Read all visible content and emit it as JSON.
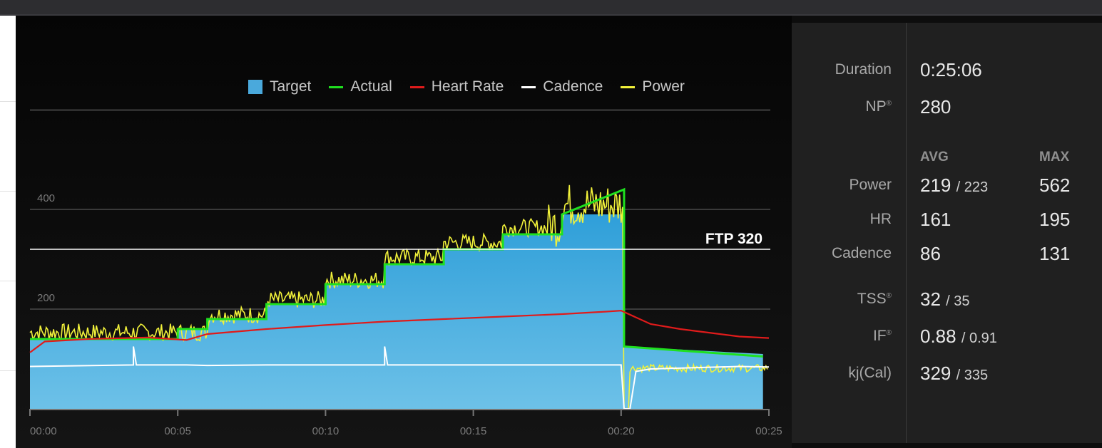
{
  "legend": [
    {
      "label": "Target",
      "color": "#4aa9dc",
      "kind": "box"
    },
    {
      "label": "Actual",
      "color": "#1fe01f",
      "kind": "line"
    },
    {
      "label": "Heart Rate",
      "color": "#e01b1b",
      "kind": "line"
    },
    {
      "label": "Cadence",
      "color": "#ffffff",
      "kind": "line"
    },
    {
      "label": "Power",
      "color": "#f2f23a",
      "kind": "line"
    }
  ],
  "ftp_label": "FTP 320",
  "chart_data": {
    "type": "area",
    "x_ticks": [
      "00:00",
      "00:05",
      "00:10",
      "00:15",
      "00:20",
      "00:25"
    ],
    "y_ticks": [
      "200",
      "400"
    ],
    "ylim": [
      0,
      600
    ],
    "xlim": [
      0,
      25
    ],
    "ftp": 320,
    "series": [
      {
        "name": "Target",
        "values_xy": [
          [
            0,
            140
          ],
          [
            5,
            140
          ],
          [
            5,
            160
          ],
          [
            6,
            160
          ],
          [
            6,
            180
          ],
          [
            8,
            180
          ],
          [
            8,
            210
          ],
          [
            10,
            210
          ],
          [
            10,
            250
          ],
          [
            12,
            250
          ],
          [
            12,
            290
          ],
          [
            14,
            290
          ],
          [
            14,
            320
          ],
          [
            16,
            320
          ],
          [
            16,
            350
          ],
          [
            18,
            350
          ],
          [
            18,
            390
          ],
          [
            20.1,
            390
          ],
          [
            20.1,
            125
          ],
          [
            24.8,
            110
          ],
          [
            24.8,
            0
          ]
        ]
      },
      {
        "name": "Actual",
        "values_xy": [
          [
            0,
            140
          ],
          [
            5,
            140
          ],
          [
            5,
            160
          ],
          [
            6,
            160
          ],
          [
            6,
            180
          ],
          [
            8,
            180
          ],
          [
            8,
            210
          ],
          [
            10,
            210
          ],
          [
            10,
            250
          ],
          [
            12,
            250
          ],
          [
            12,
            290
          ],
          [
            14,
            290
          ],
          [
            14,
            320
          ],
          [
            16,
            320
          ],
          [
            16,
            350
          ],
          [
            18,
            350
          ],
          [
            18,
            390
          ],
          [
            20.1,
            440
          ],
          [
            20.1,
            125
          ],
          [
            24.8,
            105
          ]
        ]
      },
      {
        "name": "Heart Rate",
        "values_xy": [
          [
            0,
            113
          ],
          [
            0.5,
            135
          ],
          [
            2,
            140
          ],
          [
            4,
            143
          ],
          [
            5.3,
            138
          ],
          [
            6,
            150
          ],
          [
            8,
            160
          ],
          [
            10,
            168
          ],
          [
            12,
            175
          ],
          [
            14,
            180
          ],
          [
            16,
            185
          ],
          [
            18,
            190
          ],
          [
            19.5,
            195
          ],
          [
            20,
            197
          ],
          [
            21,
            170
          ],
          [
            22,
            160
          ],
          [
            24,
            145
          ],
          [
            25,
            142
          ]
        ]
      },
      {
        "name": "Cadence",
        "values_xy": [
          [
            0,
            85
          ],
          [
            3.5,
            88
          ],
          [
            3.5,
            125
          ],
          [
            3.6,
            88
          ],
          [
            5.3,
            88
          ],
          [
            6,
            87
          ],
          [
            8,
            88
          ],
          [
            12,
            88
          ],
          [
            12,
            125
          ],
          [
            12.1,
            88
          ],
          [
            20,
            88
          ],
          [
            20.1,
            0
          ],
          [
            20.3,
            0
          ],
          [
            20.5,
            75
          ],
          [
            21,
            80
          ],
          [
            24,
            85
          ],
          [
            25,
            84
          ]
        ]
      }
    ]
  },
  "stats": {
    "duration_label": "Duration",
    "duration_value": "0:25:06",
    "np_label": "NP",
    "np_value": "280",
    "avg_header": "AVG",
    "max_header": "MAX",
    "power_label": "Power",
    "power_avg": "219",
    "power_avg2": "223",
    "power_max": "562",
    "hr_label": "HR",
    "hr_avg": "161",
    "hr_max": "195",
    "cadence_label": "Cadence",
    "cadence_avg": "86",
    "cadence_max": "131",
    "tss_label": "TSS",
    "tss_value": "32",
    "tss_value2": "35",
    "if_label": "IF",
    "if_value": "0.88",
    "if_value2": "0.91",
    "kj_label": "kj(Cal)",
    "kj_value": "329",
    "kj_value2": "335",
    "reg_mark": "®"
  }
}
